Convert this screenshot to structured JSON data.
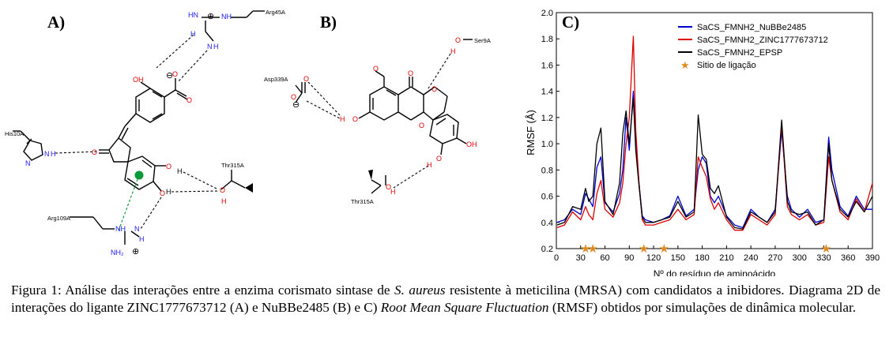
{
  "panels": {
    "a": {
      "letter": "A)"
    },
    "b": {
      "letter": "B)"
    },
    "c": {
      "letter": "C)"
    }
  },
  "diagram_a": {
    "residues": [
      "Arg45A",
      "His10A",
      "Thr315A",
      "Arg109A"
    ],
    "atoms": {
      "H": "H",
      "O": "O",
      "N": "N",
      "NH": "NH",
      "OH": "OH",
      "NH2": "NH₂",
      "HN": "HN",
      "charge_plus": "⊕",
      "charge_minus": "⊖"
    }
  },
  "diagram_b": {
    "residues": [
      "Ser9A",
      "Asp339A",
      "Thr315A"
    ],
    "atoms": {
      "H": "H",
      "O": "O",
      "OH": "OH",
      "charge_minus": "⊖"
    }
  },
  "chart_data": {
    "type": "line",
    "xlabel": "Nº do resíduo de aminoácido",
    "ylabel": "RMSF (Å)",
    "xlim": [
      0,
      390
    ],
    "ylim": [
      0.2,
      2.0
    ],
    "xticks": [
      0,
      30,
      60,
      90,
      120,
      150,
      180,
      210,
      240,
      270,
      300,
      330,
      360,
      390
    ],
    "yticks": [
      0.2,
      0.4,
      0.6,
      0.8,
      1.0,
      1.2,
      1.4,
      1.6,
      1.8,
      2.0
    ],
    "ytick_labels": [
      "0.2",
      "0.4",
      "0.6",
      "0.8",
      "1.0",
      "1.2",
      "1.4",
      "1.6",
      "1.8",
      "2.0"
    ],
    "legend_position": "top-right",
    "x": [
      1,
      10,
      20,
      30,
      36,
      40,
      45,
      50,
      55,
      60,
      70,
      78,
      82,
      86,
      90,
      95,
      98,
      102,
      106,
      110,
      120,
      130,
      140,
      150,
      160,
      170,
      175,
      180,
      185,
      190,
      195,
      200,
      210,
      220,
      230,
      240,
      250,
      260,
      270,
      278,
      285,
      290,
      300,
      310,
      320,
      330,
      336,
      340,
      350,
      360,
      370,
      380,
      390
    ],
    "series": [
      {
        "name": "SaCS_FMNH2_NuBBe2485",
        "color": "#0000cc",
        "values": [
          0.4,
          0.42,
          0.5,
          0.46,
          0.62,
          0.58,
          0.52,
          0.82,
          0.9,
          0.55,
          0.48,
          0.62,
          0.8,
          1.2,
          0.95,
          1.4,
          1.0,
          0.7,
          0.45,
          0.42,
          0.4,
          0.42,
          0.45,
          0.6,
          0.45,
          0.5,
          0.8,
          0.9,
          0.85,
          0.6,
          0.55,
          0.6,
          0.45,
          0.38,
          0.36,
          0.5,
          0.44,
          0.4,
          0.5,
          1.1,
          0.6,
          0.5,
          0.44,
          0.5,
          0.4,
          0.42,
          1.05,
          0.8,
          0.52,
          0.45,
          0.6,
          0.5,
          0.5
        ]
      },
      {
        "name": "SaCS_FMNH2_ZINC1777673712",
        "color": "#dd0000",
        "values": [
          0.36,
          0.38,
          0.48,
          0.42,
          0.52,
          0.46,
          0.42,
          0.62,
          0.72,
          0.5,
          0.44,
          0.55,
          0.7,
          1.0,
          1.2,
          1.82,
          1.1,
          0.7,
          0.42,
          0.38,
          0.38,
          0.4,
          0.42,
          0.5,
          0.42,
          0.46,
          0.9,
          0.82,
          0.75,
          0.58,
          0.5,
          0.55,
          0.42,
          0.34,
          0.34,
          0.46,
          0.42,
          0.38,
          0.46,
          1.15,
          0.52,
          0.46,
          0.42,
          0.46,
          0.38,
          0.4,
          0.9,
          0.72,
          0.48,
          0.42,
          0.58,
          0.48,
          0.7
        ]
      },
      {
        "name": "SaCS_FMNH2_EPSP",
        "color": "#000000",
        "values": [
          0.38,
          0.4,
          0.52,
          0.5,
          0.66,
          0.56,
          0.6,
          1.0,
          1.12,
          0.56,
          0.46,
          0.7,
          1.08,
          1.25,
          1.0,
          1.35,
          0.95,
          0.68,
          0.44,
          0.4,
          0.4,
          0.42,
          0.44,
          0.56,
          0.44,
          0.48,
          1.22,
          0.92,
          0.88,
          0.66,
          0.62,
          0.68,
          0.44,
          0.36,
          0.35,
          0.48,
          0.44,
          0.4,
          0.48,
          1.18,
          0.56,
          0.48,
          0.46,
          0.48,
          0.38,
          0.42,
          1.0,
          0.72,
          0.5,
          0.44,
          0.56,
          0.48,
          0.6
        ]
      }
    ],
    "binding_sites": {
      "name": "Sitio de ligação",
      "color": "#e08a1e",
      "x": [
        36,
        45,
        108,
        133,
        333
      ],
      "y": 0.2
    }
  },
  "caption": {
    "label": "Figura 1:",
    "t1": " Análise das interações entre a enzima corismato sintase de ",
    "species": "S. aureus",
    "t2": " resistente à meticilina (MRSA) com candidatos a inibidores. Diagrama 2D de interações do ligante ZINC1777673712 (A) e NuBBe2485 (B) e C) ",
    "term": "Root Mean Square Fluctuation",
    "t3": " (RMSF) obtidos por simulações de dinâmica molecular."
  }
}
